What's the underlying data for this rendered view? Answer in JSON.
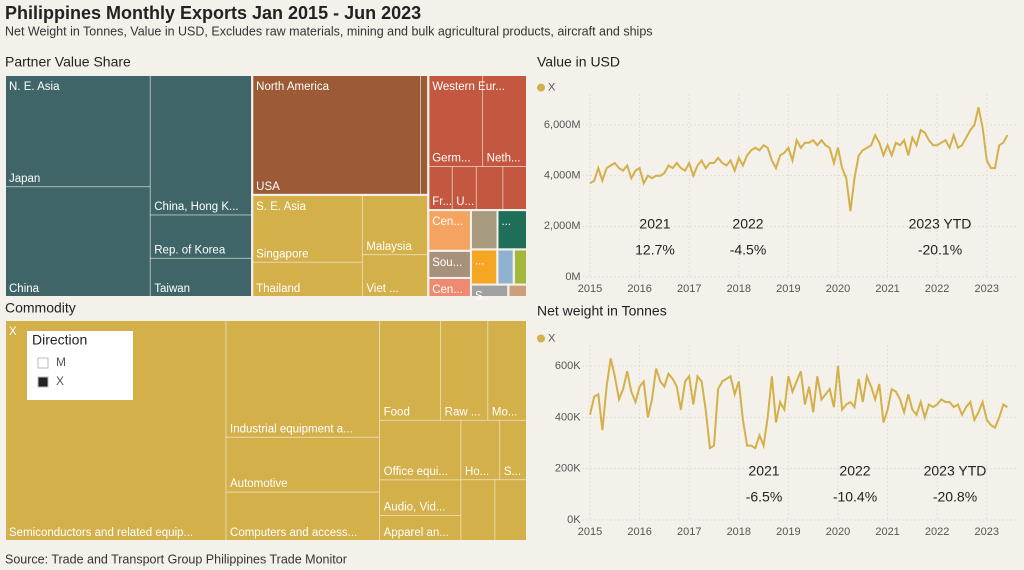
{
  "header": {
    "title": "Philippines Monthly Exports Jan 2015 - Jun 2023",
    "subtitle": "Net Weight in Tonnes, Value in USD, Excludes raw materials, mining and bulk agricultural products, aircraft and ships"
  },
  "source": "Source: Trade and Transport Group Philippines Trade Monitor",
  "chart_data": [
    {
      "type": "treemap",
      "title": "Partner Value Share",
      "groups": [
        {
          "name": "N. E. Asia",
          "color": "#3f6569",
          "children": [
            {
              "name": "Japan",
              "value": 14.0
            },
            {
              "name": "China",
              "value": 13.8
            },
            {
              "name": "China, Hong K...",
              "value": 12.3
            },
            {
              "name": "Rep. of Korea",
              "value": 3.8
            },
            {
              "name": "Taiwan",
              "value": 3.4
            }
          ]
        },
        {
          "name": "North America",
          "color": "#9c5b36",
          "children": [
            {
              "name": "USA",
              "value": 17.4
            },
            {
              "name": null,
              "value": 0.8
            }
          ]
        },
        {
          "name": "S. E. Asia",
          "color": "#d4b04a",
          "children": [
            {
              "name": "Singapore",
              "value": 6.4
            },
            {
              "name": "Thailand",
              "value": 3.3
            },
            {
              "name": "Malaysia",
              "value": 3.4
            },
            {
              "name": "Viet ...",
              "value": 2.4
            }
          ]
        },
        {
          "name": "Western Eur...",
          "color": "#c4573f",
          "children": [
            {
              "name": "Germ...",
              "value": 4.3
            },
            {
              "name": "Neth...",
              "value": 3.5
            },
            {
              "name": "Fr...",
              "value": 0.9
            },
            {
              "name": "U...",
              "value": 0.9
            },
            {
              "name": null,
              "value": 1.0
            },
            {
              "name": null,
              "value": 0.9
            }
          ]
        },
        {
          "name": "Cen...",
          "color": "#f4a460",
          "children": [
            {
              "name": null,
              "value": 1.5
            }
          ]
        },
        {
          "name": "Sou...",
          "color": "#a8917a",
          "children": [
            {
              "name": null,
              "value": 1.0
            }
          ]
        },
        {
          "name": "Cen...",
          "color": "#ee8a72",
          "children": [
            {
              "name": null,
              "value": 0.7
            }
          ]
        },
        {
          "name": null,
          "color": "#a89a7e",
          "children": [
            {
              "name": null,
              "value": 0.9
            }
          ]
        },
        {
          "name": "...",
          "color": "#1e6e58",
          "children": [
            {
              "name": null,
              "value": 1.0
            }
          ]
        },
        {
          "name": "...",
          "color": "#f5a623",
          "children": [
            {
              "name": null,
              "value": 0.8
            }
          ]
        },
        {
          "name": null,
          "color": "#8fb2cf",
          "children": [
            {
              "name": null,
              "value": 0.5
            }
          ]
        },
        {
          "name": null,
          "color": "#a3b83a",
          "children": [
            {
              "name": null,
              "value": 0.4
            }
          ]
        },
        {
          "name": "S...",
          "color": "#a0a0a0",
          "children": [
            {
              "name": null,
              "value": 0.4
            }
          ]
        },
        {
          "name": null,
          "color": "#cc9f7a",
          "children": [
            {
              "name": null,
              "value": 0.2
            }
          ]
        }
      ]
    },
    {
      "type": "treemap",
      "title": "Commodity",
      "legend": {
        "title": "Direction",
        "items": [
          {
            "name": "M",
            "color": "#ffffff"
          },
          {
            "name": "X",
            "color": "#222222"
          }
        ]
      },
      "groups": [
        {
          "name": "X",
          "color": "#d4b04a",
          "children": [
            {
              "name": "Semiconductors and related equip...",
              "value": 42.3
            },
            {
              "name": "Industrial equipment a...",
              "value": 15.6
            },
            {
              "name": "Automotive",
              "value": 7.3
            },
            {
              "name": "Computers and access...",
              "value": 6.5
            },
            {
              "name": "Food",
              "value": 5.3
            },
            {
              "name": "Raw ...",
              "value": 4.1
            },
            {
              "name": "Mo...",
              "value": 3.4
            },
            {
              "name": "Office equi...",
              "value": 4.2
            },
            {
              "name": "Audio, Vid...",
              "value": 2.5
            },
            {
              "name": "Apparel an...",
              "value": 1.8
            },
            {
              "name": "Ho...",
              "value": 2.0
            },
            {
              "name": "S...",
              "value": 1.4
            },
            {
              "name": null,
              "value": 1.8
            },
            {
              "name": null,
              "value": 1.7
            }
          ]
        }
      ]
    },
    {
      "type": "line",
      "title": "Value in USD",
      "grid": true,
      "x": [
        2015,
        2015.083,
        2015.167,
        2015.25,
        2015.333,
        2015.417,
        2015.5,
        2015.583,
        2015.667,
        2015.75,
        2015.833,
        2015.917,
        2016,
        2016.083,
        2016.167,
        2016.25,
        2016.333,
        2016.417,
        2016.5,
        2016.583,
        2016.667,
        2016.75,
        2016.833,
        2016.917,
        2017,
        2017.083,
        2017.167,
        2017.25,
        2017.333,
        2017.417,
        2017.5,
        2017.583,
        2017.667,
        2017.75,
        2017.833,
        2017.917,
        2018,
        2018.083,
        2018.167,
        2018.25,
        2018.333,
        2018.417,
        2018.5,
        2018.583,
        2018.667,
        2018.75,
        2018.833,
        2018.917,
        2019,
        2019.083,
        2019.167,
        2019.25,
        2019.333,
        2019.417,
        2019.5,
        2019.583,
        2019.667,
        2019.75,
        2019.833,
        2019.917,
        2020,
        2020.083,
        2020.167,
        2020.25,
        2020.333,
        2020.417,
        2020.5,
        2020.583,
        2020.667,
        2020.75,
        2020.833,
        2020.917,
        2021,
        2021.083,
        2021.167,
        2021.25,
        2021.333,
        2021.417,
        2021.5,
        2021.583,
        2021.667,
        2021.75,
        2021.833,
        2021.917,
        2022,
        2022.083,
        2022.167,
        2022.25,
        2022.333,
        2022.417,
        2022.5,
        2022.583,
        2022.667,
        2022.75,
        2022.833,
        2022.917,
        2023,
        2023.083,
        2023.167,
        2023.25,
        2023.333,
        2023.417
      ],
      "series": [
        {
          "name": "X",
          "color": "#d4b04a",
          "values": [
            3700,
            3800,
            4300,
            3800,
            4300,
            4400,
            4500,
            4300,
            4200,
            4400,
            3900,
            4200,
            4300,
            3700,
            4000,
            3900,
            4000,
            4000,
            4100,
            4400,
            4300,
            4500,
            4300,
            4200,
            4500,
            4000,
            4400,
            4600,
            4300,
            4500,
            4500,
            4700,
            4500,
            4400,
            4600,
            4200,
            4700,
            4400,
            4800,
            5000,
            5100,
            5000,
            5200,
            5100,
            4600,
            4300,
            4800,
            4900,
            5100,
            4600,
            5400,
            5100,
            5300,
            5300,
            5400,
            5200,
            5400,
            5200,
            5100,
            4500,
            5100,
            4300,
            3900,
            2600,
            3900,
            4800,
            5000,
            5100,
            5200,
            5600,
            5300,
            4800,
            5200,
            4800,
            5300,
            5200,
            5400,
            4800,
            5500,
            5200,
            5800,
            5700,
            5400,
            5200,
            5200,
            5300,
            5400,
            5100,
            5600,
            5100,
            5200,
            5500,
            5800,
            6000,
            6700,
            5900,
            4600,
            4300,
            4300,
            5200,
            5300,
            5600
          ]
        }
      ],
      "xlim": [
        2014.85,
        2023.65
      ],
      "xticks": [
        2015,
        2016,
        2017,
        2018,
        2019,
        2020,
        2021,
        2022,
        2023
      ],
      "ylim": [
        0,
        7200
      ],
      "yticks": [
        {
          "value": 0,
          "label": "0M"
        },
        {
          "value": 2000,
          "label": "2,000M"
        },
        {
          "value": 4000,
          "label": "4,000M"
        },
        {
          "value": 6000,
          "label": "6,000M"
        }
      ],
      "annotations": [
        {
          "label": "2021",
          "text": "12.7%"
        },
        {
          "label": "2022",
          "text": "-4.5%"
        },
        {
          "label": "2023 YTD",
          "text": "-20.1%"
        }
      ]
    },
    {
      "type": "line",
      "title": "Net weight in Tonnes",
      "grid": true,
      "x": [
        2015,
        2015.083,
        2015.167,
        2015.25,
        2015.333,
        2015.417,
        2015.5,
        2015.583,
        2015.667,
        2015.75,
        2015.833,
        2015.917,
        2016,
        2016.083,
        2016.167,
        2016.25,
        2016.333,
        2016.417,
        2016.5,
        2016.583,
        2016.667,
        2016.75,
        2016.833,
        2016.917,
        2017,
        2017.083,
        2017.167,
        2017.25,
        2017.333,
        2017.417,
        2017.5,
        2017.583,
        2017.667,
        2017.75,
        2017.833,
        2017.917,
        2018,
        2018.083,
        2018.167,
        2018.25,
        2018.333,
        2018.417,
        2018.5,
        2018.583,
        2018.667,
        2018.75,
        2018.833,
        2018.917,
        2019,
        2019.083,
        2019.167,
        2019.25,
        2019.333,
        2019.417,
        2019.5,
        2019.583,
        2019.667,
        2019.75,
        2019.833,
        2019.917,
        2020,
        2020.083,
        2020.167,
        2020.25,
        2020.333,
        2020.417,
        2020.5,
        2020.583,
        2020.667,
        2020.75,
        2020.833,
        2020.917,
        2021,
        2021.083,
        2021.167,
        2021.25,
        2021.333,
        2021.417,
        2021.5,
        2021.583,
        2021.667,
        2021.75,
        2021.833,
        2021.917,
        2022,
        2022.083,
        2022.167,
        2022.25,
        2022.333,
        2022.417,
        2022.5,
        2022.583,
        2022.667,
        2022.75,
        2022.833,
        2022.917,
        2023,
        2023.083,
        2023.167,
        2023.25,
        2023.333,
        2023.417
      ],
      "series": [
        {
          "name": "X",
          "color": "#d4b04a",
          "values": [
            410,
            480,
            490,
            350,
            520,
            630,
            560,
            470,
            510,
            580,
            500,
            460,
            520,
            540,
            400,
            470,
            590,
            540,
            520,
            570,
            550,
            520,
            430,
            540,
            560,
            450,
            560,
            540,
            430,
            280,
            290,
            510,
            540,
            550,
            560,
            490,
            540,
            390,
            290,
            290,
            280,
            330,
            290,
            400,
            560,
            380,
            460,
            430,
            560,
            500,
            540,
            580,
            450,
            520,
            420,
            560,
            470,
            490,
            510,
            440,
            600,
            430,
            450,
            460,
            440,
            550,
            460,
            560,
            520,
            470,
            530,
            380,
            430,
            510,
            500,
            470,
            420,
            490,
            430,
            410,
            460,
            400,
            450,
            440,
            450,
            470,
            460,
            460,
            440,
            450,
            410,
            440,
            460,
            390,
            420,
            460,
            390,
            370,
            360,
            400,
            450,
            440
          ]
        }
      ],
      "xlim": [
        2014.85,
        2023.65
      ],
      "xticks": [
        2015,
        2016,
        2017,
        2018,
        2019,
        2020,
        2021,
        2022,
        2023
      ],
      "ylim": [
        0,
        680
      ],
      "yticks": [
        {
          "value": 0,
          "label": "0K"
        },
        {
          "value": 200,
          "label": "200K"
        },
        {
          "value": 400,
          "label": "400K"
        },
        {
          "value": 600,
          "label": "600K"
        }
      ],
      "annotations": [
        {
          "label": "2021",
          "text": "-6.5%"
        },
        {
          "label": "2022",
          "text": "-10.4%"
        },
        {
          "label": "2023 YTD",
          "text": "-20.8%"
        }
      ]
    }
  ]
}
